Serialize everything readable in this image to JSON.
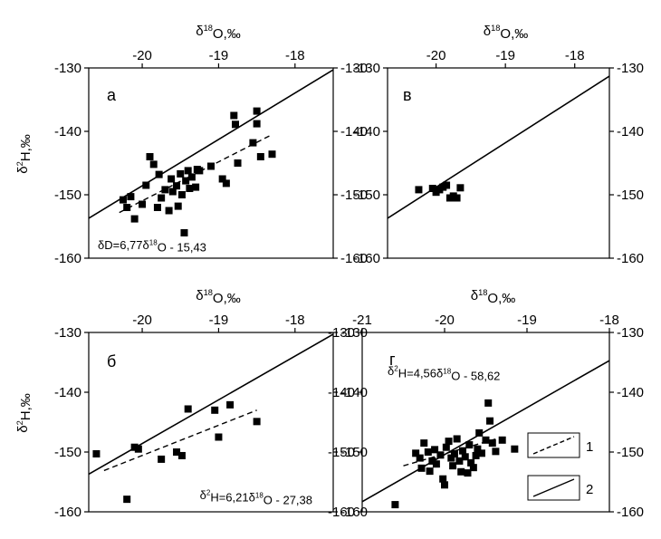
{
  "chart_data": [
    {
      "id": "a",
      "type": "scatter",
      "panel_label": "а",
      "xlabel": "δ¹⁸O,‰",
      "ylabel": "δ²H,‰",
      "xlim": [
        -20.7,
        -17.5
      ],
      "ylim": [
        -160,
        -130
      ],
      "x_ticks": [
        -20,
        -19,
        -18
      ],
      "y_ticks": [
        -130,
        -140,
        -150,
        -160
      ],
      "points": [
        {
          "x": -20.25,
          "y": -150.8
        },
        {
          "x": -20.2,
          "y": -152.0
        },
        {
          "x": -20.15,
          "y": -150.3
        },
        {
          "x": -20.1,
          "y": -153.8
        },
        {
          "x": -20.0,
          "y": -151.5
        },
        {
          "x": -19.95,
          "y": -148.5
        },
        {
          "x": -19.9,
          "y": -144.0
        },
        {
          "x": -19.85,
          "y": -145.2
        },
        {
          "x": -19.8,
          "y": -152.0
        },
        {
          "x": -19.78,
          "y": -146.8
        },
        {
          "x": -19.75,
          "y": -150.5
        },
        {
          "x": -19.7,
          "y": -149.2
        },
        {
          "x": -19.65,
          "y": -152.5
        },
        {
          "x": -19.62,
          "y": -147.5
        },
        {
          "x": -19.6,
          "y": -149.5
        },
        {
          "x": -19.55,
          "y": -148.6
        },
        {
          "x": -19.53,
          "y": -151.8
        },
        {
          "x": -19.5,
          "y": -146.7
        },
        {
          "x": -19.48,
          "y": -150.0
        },
        {
          "x": -19.45,
          "y": -156.0
        },
        {
          "x": -19.43,
          "y": -147.8
        },
        {
          "x": -19.4,
          "y": -146.2
        },
        {
          "x": -19.38,
          "y": -149.0
        },
        {
          "x": -19.35,
          "y": -147.2
        },
        {
          "x": -19.3,
          "y": -148.8
        },
        {
          "x": -19.28,
          "y": -146.0
        },
        {
          "x": -19.25,
          "y": -146.2
        },
        {
          "x": -19.1,
          "y": -145.5
        },
        {
          "x": -18.95,
          "y": -147.5
        },
        {
          "x": -18.9,
          "y": -148.2
        },
        {
          "x": -18.8,
          "y": -137.5
        },
        {
          "x": -18.78,
          "y": -138.9
        },
        {
          "x": -18.75,
          "y": -145.0
        },
        {
          "x": -18.55,
          "y": -141.8
        },
        {
          "x": -18.5,
          "y": -136.8
        },
        {
          "x": -18.5,
          "y": -138.8
        },
        {
          "x": -18.45,
          "y": -144.0
        },
        {
          "x": -18.3,
          "y": -143.6
        }
      ],
      "lines": [
        {
          "style": "solid",
          "x": [
            -20.7,
            -17.5
          ],
          "y": [
            -153.7,
            -130.3
          ]
        },
        {
          "style": "dashed",
          "x": [
            -20.3,
            -18.3
          ],
          "y": [
            -152.8,
            -140.5
          ]
        }
      ],
      "equation": "δD=6,77δ¹⁸O - 15,43"
    },
    {
      "id": "v",
      "type": "scatter",
      "panel_label": "в",
      "xlabel": "δ¹⁸O,‰",
      "xlim": [
        -20.7,
        -17.5
      ],
      "ylim": [
        -160,
        -130
      ],
      "x_ticks": [
        -20,
        -19,
        -18
      ],
      "y_ticks": [
        -130,
        -140,
        -150,
        -160
      ],
      "points": [
        {
          "x": -20.25,
          "y": -149.2
        },
        {
          "x": -20.05,
          "y": -149.0
        },
        {
          "x": -20.0,
          "y": -149.6
        },
        {
          "x": -19.95,
          "y": -149.2
        },
        {
          "x": -19.9,
          "y": -148.8
        },
        {
          "x": -19.85,
          "y": -148.5
        },
        {
          "x": -19.8,
          "y": -150.5
        },
        {
          "x": -19.75,
          "y": -150.2
        },
        {
          "x": -19.7,
          "y": -150.5
        },
        {
          "x": -19.65,
          "y": -148.9
        }
      ],
      "lines": [
        {
          "style": "solid",
          "x": [
            -20.7,
            -17.5
          ],
          "y": [
            -153.7,
            -131.3
          ]
        }
      ]
    },
    {
      "id": "b",
      "type": "scatter",
      "panel_label": "б",
      "xlabel": "δ¹⁸O,‰",
      "ylabel": "δ²H,‰",
      "xlim": [
        -20.7,
        -17.5
      ],
      "ylim": [
        -160,
        -130
      ],
      "x_ticks": [
        -20,
        -19,
        -18
      ],
      "y_ticks": [
        -130,
        -140,
        -150,
        -160
      ],
      "points": [
        {
          "x": -20.6,
          "y": -150.3
        },
        {
          "x": -20.2,
          "y": -157.9
        },
        {
          "x": -20.1,
          "y": -149.2
        },
        {
          "x": -20.05,
          "y": -149.5
        },
        {
          "x": -19.75,
          "y": -151.2
        },
        {
          "x": -19.55,
          "y": -150.0
        },
        {
          "x": -19.48,
          "y": -150.6
        },
        {
          "x": -19.4,
          "y": -142.8
        },
        {
          "x": -19.05,
          "y": -143.0
        },
        {
          "x": -19.0,
          "y": -147.5
        },
        {
          "x": -18.85,
          "y": -142.1
        },
        {
          "x": -18.5,
          "y": -144.9
        }
      ],
      "lines": [
        {
          "style": "solid",
          "x": [
            -20.7,
            -17.5
          ],
          "y": [
            -153.7,
            -130.3
          ]
        },
        {
          "style": "dashed",
          "x": [
            -20.5,
            -18.5
          ],
          "y": [
            -153.1,
            -143.0
          ]
        }
      ],
      "equation": "δ²H=6,21δ¹⁸O - 27,38"
    },
    {
      "id": "g",
      "type": "scatter",
      "panel_label": "г",
      "xlabel": "δ¹⁸O,‰",
      "xlim": [
        -21,
        -18
      ],
      "ylim": [
        -160,
        -130
      ],
      "x_ticks": [
        -21,
        -20,
        -19,
        -18
      ],
      "y_ticks": [
        -130,
        -140,
        -150,
        -160
      ],
      "points": [
        {
          "x": -20.6,
          "y": -158.8
        },
        {
          "x": -20.35,
          "y": -150.2
        },
        {
          "x": -20.3,
          "y": -151.0
        },
        {
          "x": -20.28,
          "y": -152.7
        },
        {
          "x": -20.25,
          "y": -148.5
        },
        {
          "x": -20.2,
          "y": -150.0
        },
        {
          "x": -20.18,
          "y": -153.2
        },
        {
          "x": -20.15,
          "y": -151.5
        },
        {
          "x": -20.12,
          "y": -149.6
        },
        {
          "x": -20.1,
          "y": -152.0
        },
        {
          "x": -20.05,
          "y": -150.5
        },
        {
          "x": -20.02,
          "y": -154.5
        },
        {
          "x": -20.0,
          "y": -155.5
        },
        {
          "x": -19.98,
          "y": -149.2
        },
        {
          "x": -19.95,
          "y": -148.2
        },
        {
          "x": -19.92,
          "y": -151.0
        },
        {
          "x": -19.9,
          "y": -152.3
        },
        {
          "x": -19.88,
          "y": -150.3
        },
        {
          "x": -19.85,
          "y": -147.8
        },
        {
          "x": -19.82,
          "y": -151.5
        },
        {
          "x": -19.8,
          "y": -153.3
        },
        {
          "x": -19.78,
          "y": -149.8
        },
        {
          "x": -19.75,
          "y": -150.8
        },
        {
          "x": -19.72,
          "y": -153.5
        },
        {
          "x": -19.7,
          "y": -148.8
        },
        {
          "x": -19.68,
          "y": -151.8
        },
        {
          "x": -19.65,
          "y": -152.6
        },
        {
          "x": -19.62,
          "y": -150.6
        },
        {
          "x": -19.6,
          "y": -149.5
        },
        {
          "x": -19.58,
          "y": -146.8
        },
        {
          "x": -19.55,
          "y": -150.2
        },
        {
          "x": -19.5,
          "y": -148.0
        },
        {
          "x": -19.47,
          "y": -141.8
        },
        {
          "x": -19.45,
          "y": -144.8
        },
        {
          "x": -19.42,
          "y": -148.5
        },
        {
          "x": -19.38,
          "y": -149.9
        },
        {
          "x": -19.3,
          "y": -148.0
        },
        {
          "x": -19.15,
          "y": -149.5
        }
      ],
      "lines": [
        {
          "style": "solid",
          "x": [
            -21,
            -18
          ],
          "y": [
            -158.3,
            -134.7
          ]
        },
        {
          "style": "dashed",
          "x": [
            -20.5,
            -19.3
          ],
          "y": [
            -152.3,
            -147.5
          ]
        }
      ],
      "equation": "δ²H=4,56δ¹⁸O - 58,62"
    }
  ],
  "legend": [
    {
      "number": "1",
      "style": "dashed"
    },
    {
      "number": "2",
      "style": "solid"
    }
  ]
}
